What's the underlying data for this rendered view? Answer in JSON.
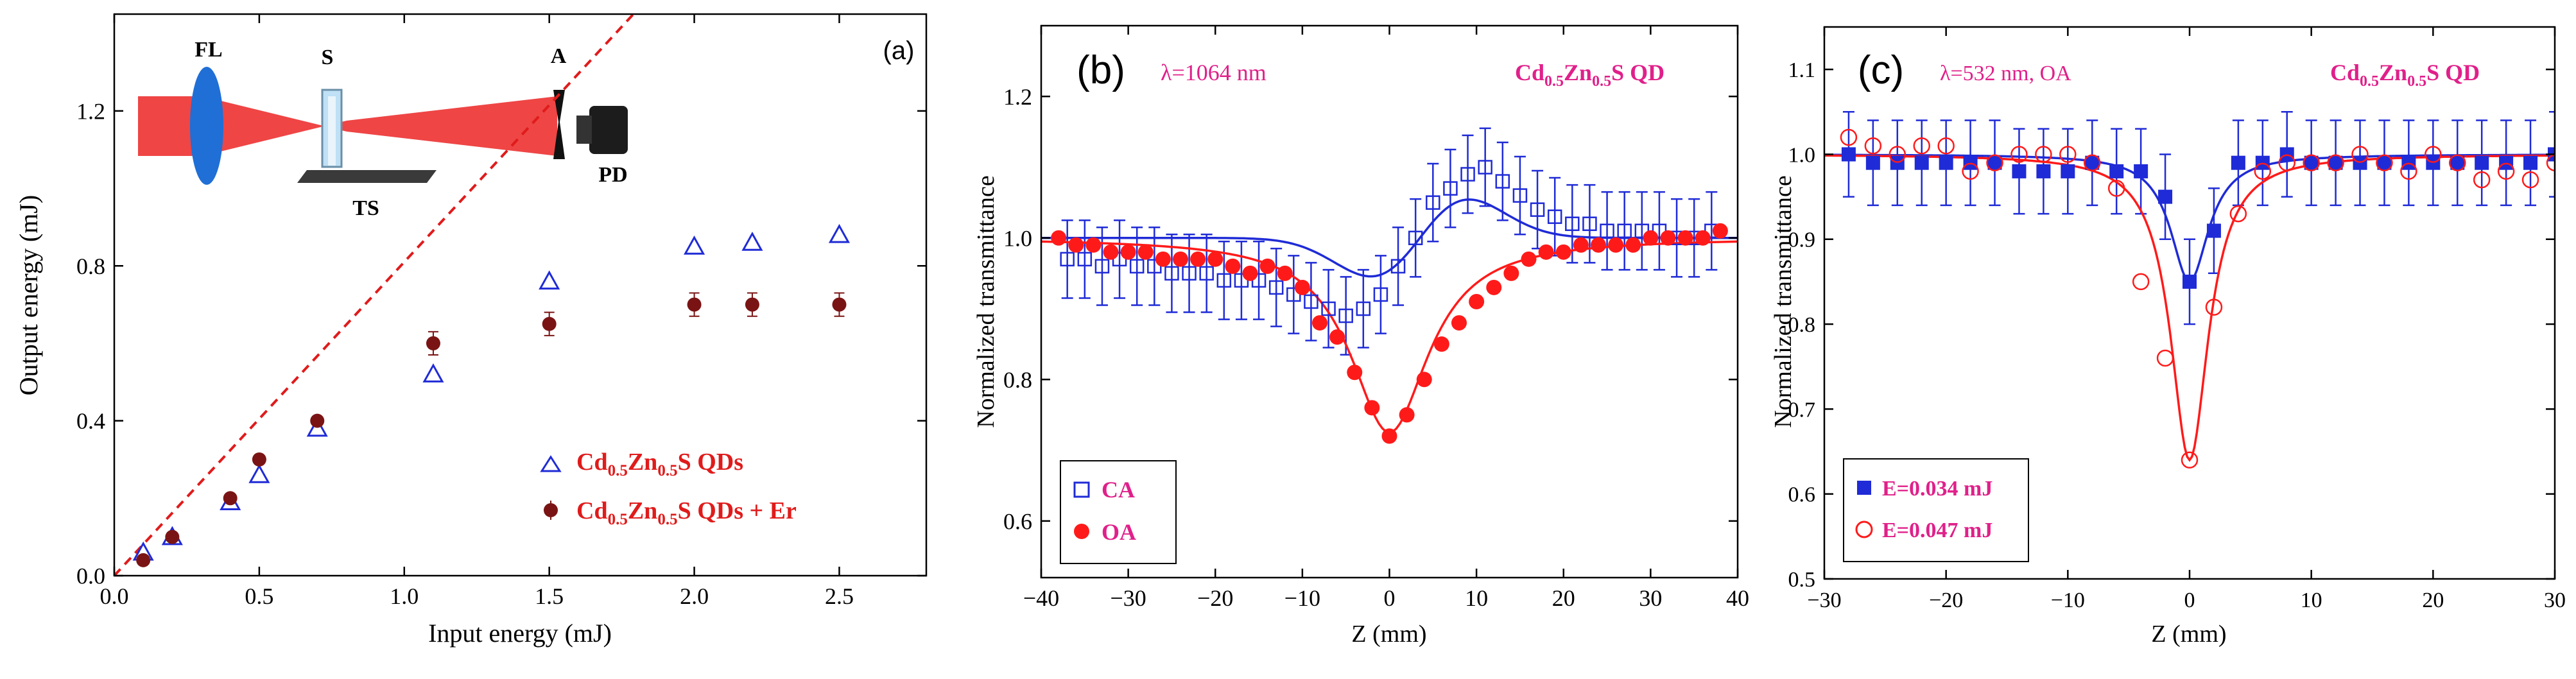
{
  "chart_data": [
    {
      "type": "scatter",
      "panel_label": "(a)",
      "xlabel": "Input energy (mJ)",
      "ylabel": "Output energy (mJ)",
      "xlim": [
        0.0,
        2.8
      ],
      "ylim": [
        0.0,
        1.45
      ],
      "xticks": [
        0.0,
        0.5,
        1.0,
        1.5,
        2.0,
        2.5
      ],
      "xtick_labels": [
        "0.0",
        "0.5",
        "1.0",
        "1.5",
        "2.0",
        "2.5"
      ],
      "yticks": [
        0.0,
        0.4,
        0.8,
        1.2
      ],
      "ytick_labels": [
        "0.0",
        "0.4",
        "0.8",
        "1.2"
      ],
      "reference_line": {
        "style": "dashed",
        "color": "#e01b1b",
        "slope": 0.81
      },
      "inset": {
        "labels": {
          "fl": "FL",
          "s": "S",
          "a": "A",
          "ts": "TS",
          "pd": "PD"
        }
      },
      "series": [
        {
          "name": "Cd0.5Zn0.5S QDs",
          "legend": {
            "base": "Cd",
            "sub1": "0.5",
            "mid": "Zn",
            "sub2": "0.5",
            "tail": "S QDs"
          },
          "marker": "open-triangle",
          "color": "#1f2bd6",
          "x": [
            0.1,
            0.2,
            0.4,
            0.5,
            0.7,
            1.1,
            1.5,
            2.0,
            2.2,
            2.5
          ],
          "y": [
            0.06,
            0.1,
            0.19,
            0.26,
            0.38,
            0.52,
            0.76,
            0.85,
            0.86,
            0.88
          ]
        },
        {
          "name": "Cd0.5Zn0.5S QDs + Er",
          "legend": {
            "base": "Cd",
            "sub1": "0.5",
            "mid": "Zn",
            "sub2": "0.5",
            "tail": "S QDs + Er"
          },
          "marker": "filled-circle",
          "color": "#7a1414",
          "x": [
            0.1,
            0.2,
            0.4,
            0.5,
            0.7,
            1.1,
            1.5,
            2.0,
            2.2,
            2.5
          ],
          "y": [
            0.04,
            0.1,
            0.2,
            0.3,
            0.4,
            0.6,
            0.65,
            0.7,
            0.7,
            0.7
          ],
          "err": [
            0.01,
            0.01,
            0.01,
            0.01,
            0.01,
            0.03,
            0.03,
            0.03,
            0.03,
            0.03
          ]
        }
      ]
    },
    {
      "type": "scatter",
      "panel_label": "(b)",
      "annotation": "λ=1064 nm",
      "sample": {
        "base": "Cd",
        "sub1": "0.5",
        "mid": "Zn",
        "sub2": "0.5",
        "tail": "S QD"
      },
      "xlabel": "Z (mm)",
      "ylabel": "Normalized transmittance",
      "xlim": [
        -40,
        40
      ],
      "ylim": [
        0.52,
        1.3
      ],
      "xticks": [
        -40,
        -30,
        -20,
        -10,
        0,
        10,
        20,
        30,
        40
      ],
      "xtick_labels": [
        "−40",
        "−30",
        "−20",
        "−10",
        "0",
        "10",
        "20",
        "30",
        "40"
      ],
      "yticks": [
        0.6,
        0.8,
        1.0,
        1.2
      ],
      "ytick_labels": [
        "0.6",
        "0.8",
        "1.0",
        "1.2"
      ],
      "series": [
        {
          "name": "CA",
          "marker": "open-square",
          "color": "#1f2bd6",
          "x": [
            -37,
            -35,
            -33,
            -31,
            -29,
            -27,
            -25,
            -23,
            -21,
            -19,
            -17,
            -15,
            -13,
            -11,
            -9,
            -7,
            -5,
            -3,
            -1,
            1,
            3,
            5,
            7,
            9,
            11,
            13,
            15,
            17,
            19,
            21,
            23,
            25,
            27,
            29,
            31,
            33,
            35,
            37
          ],
          "y": [
            0.97,
            0.97,
            0.96,
            0.97,
            0.96,
            0.96,
            0.95,
            0.95,
            0.95,
            0.94,
            0.94,
            0.94,
            0.93,
            0.92,
            0.91,
            0.9,
            0.89,
            0.9,
            0.92,
            0.96,
            1.0,
            1.05,
            1.07,
            1.09,
            1.1,
            1.08,
            1.06,
            1.04,
            1.03,
            1.02,
            1.02,
            1.01,
            1.01,
            1.01,
            1.01,
            1.0,
            1.0,
            1.01
          ],
          "err": 0.055
        },
        {
          "name": "OA",
          "marker": "filled-circle",
          "color": "#ff1a1a",
          "x": [
            -38,
            -36,
            -34,
            -32,
            -30,
            -28,
            -26,
            -24,
            -22,
            -20,
            -18,
            -16,
            -14,
            -12,
            -10,
            -8,
            -6,
            -4,
            -2,
            0,
            2,
            4,
            6,
            8,
            10,
            12,
            14,
            16,
            18,
            20,
            22,
            24,
            26,
            28,
            30,
            32,
            34,
            36,
            38
          ],
          "y": [
            1.0,
            0.99,
            0.99,
            0.98,
            0.98,
            0.98,
            0.97,
            0.97,
            0.97,
            0.97,
            0.96,
            0.95,
            0.96,
            0.95,
            0.93,
            0.88,
            0.86,
            0.81,
            0.76,
            0.72,
            0.75,
            0.8,
            0.85,
            0.88,
            0.91,
            0.93,
            0.95,
            0.97,
            0.98,
            0.98,
            0.99,
            0.99,
            0.99,
            0.99,
            1.0,
            1.0,
            1.0,
            1.0,
            1.01
          ],
          "err": 0.0
        }
      ]
    },
    {
      "type": "scatter",
      "panel_label": "(c)",
      "annotation": "λ=532 nm, OA",
      "sample": {
        "base": "Cd",
        "sub1": "0.5",
        "mid": "Zn",
        "sub2": "0.5",
        "tail": "S QD"
      },
      "xlabel": "Z (mm)",
      "ylabel": "Normalized transmittance",
      "xlim": [
        -30,
        30
      ],
      "ylim": [
        0.5,
        1.15
      ],
      "xticks": [
        -30,
        -20,
        -10,
        0,
        10,
        20,
        30
      ],
      "xtick_labels": [
        "−30",
        "−20",
        "−10",
        "0",
        "10",
        "20",
        "30"
      ],
      "yticks": [
        0.5,
        0.6,
        0.7,
        0.8,
        0.9,
        1.0,
        1.1
      ],
      "ytick_labels": [
        "0.5",
        "0.6",
        "0.7",
        "0.8",
        "0.9",
        "1.0",
        "1.1"
      ],
      "series": [
        {
          "name": "E=0.034 mJ",
          "marker": "filled-square",
          "color": "#1f2bd6",
          "x": [
            -28,
            -26,
            -24,
            -22,
            -20,
            -18,
            -16,
            -14,
            -12,
            -10,
            -8,
            -6,
            -4,
            -2,
            0,
            2,
            4,
            6,
            8,
            10,
            12,
            14,
            16,
            18,
            20,
            22,
            24,
            26,
            28,
            30
          ],
          "y": [
            1.0,
            0.99,
            0.99,
            0.99,
            0.99,
            0.99,
            0.99,
            0.98,
            0.98,
            0.98,
            0.99,
            0.98,
            0.98,
            0.95,
            0.85,
            0.91,
            0.99,
            0.99,
            1.0,
            0.99,
            0.99,
            0.99,
            0.99,
            0.99,
            0.99,
            0.99,
            0.99,
            0.99,
            0.99,
            1.0
          ],
          "err": 0.05
        },
        {
          "name": "E=0.047 mJ",
          "marker": "open-circle",
          "color": "#ff1a1a",
          "x": [
            -28,
            -26,
            -24,
            -22,
            -20,
            -18,
            -16,
            -14,
            -12,
            -10,
            -8,
            -6,
            -4,
            -2,
            0,
            2,
            4,
            6,
            8,
            10,
            12,
            14,
            16,
            18,
            20,
            22,
            24,
            26,
            28,
            30
          ],
          "y": [
            1.02,
            1.01,
            1.0,
            1.01,
            1.01,
            0.98,
            0.99,
            1.0,
            1.0,
            1.0,
            0.99,
            0.96,
            0.85,
            0.76,
            0.64,
            0.82,
            0.93,
            0.98,
            0.99,
            0.99,
            0.99,
            1.0,
            0.99,
            0.98,
            1.0,
            0.99,
            0.97,
            0.98,
            0.97,
            0.99
          ],
          "err": 0.0
        }
      ]
    }
  ]
}
